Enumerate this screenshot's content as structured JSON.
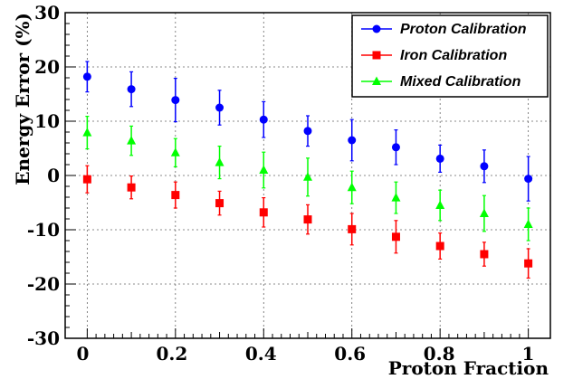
{
  "chart_data": {
    "type": "scatter",
    "xlabel": "Proton Fraction",
    "ylabel": "Energy Error (%)",
    "xlim": [
      -0.05,
      1.05
    ],
    "ylim": [
      -30,
      30
    ],
    "grid": true,
    "legend_position": "top-right",
    "x_ticks": [
      0,
      0.2,
      0.4,
      0.6,
      0.8,
      1
    ],
    "x_tick_labels": [
      "0",
      "0.2",
      "0.4",
      "0.6",
      "0.8",
      "1"
    ],
    "y_ticks": [
      -30,
      -20,
      -10,
      0,
      10,
      20,
      30
    ],
    "y_tick_labels": [
      "-30",
      "-20",
      "-10",
      "0",
      "10",
      "20",
      "30"
    ],
    "x": [
      0,
      0.1,
      0.2,
      0.3,
      0.4,
      0.5,
      0.6,
      0.7,
      0.8,
      0.9,
      1.0
    ],
    "series": [
      {
        "name": "Proton Calibration",
        "color": "#0000ff",
        "marker": "circle",
        "values": [
          18.2,
          15.9,
          13.9,
          12.5,
          10.3,
          8.2,
          6.5,
          5.2,
          3.1,
          1.7,
          -0.6
        ],
        "errors": [
          2.8,
          3.2,
          4.0,
          3.2,
          3.3,
          2.8,
          3.8,
          3.2,
          2.5,
          3.0,
          4.1
        ]
      },
      {
        "name": "Iron Calibration",
        "color": "#ff0000",
        "marker": "square",
        "values": [
          -0.7,
          -2.2,
          -3.6,
          -5.1,
          -6.8,
          -8.1,
          -9.9,
          -11.3,
          -13.0,
          -14.5,
          -16.2
        ],
        "errors": [
          2.5,
          2.1,
          2.4,
          2.2,
          2.7,
          2.7,
          2.9,
          3.0,
          2.4,
          2.2,
          2.7
        ]
      },
      {
        "name": "Mixed Calibration",
        "color": "#00ff00",
        "marker": "triangle",
        "values": [
          7.9,
          6.4,
          4.2,
          2.4,
          1.0,
          -0.3,
          -2.2,
          -4.1,
          -5.5,
          -7.0,
          -9.0
        ],
        "errors": [
          3.0,
          2.7,
          2.6,
          3.0,
          3.3,
          3.5,
          3.0,
          2.9,
          2.8,
          3.3,
          3.0
        ]
      }
    ]
  }
}
